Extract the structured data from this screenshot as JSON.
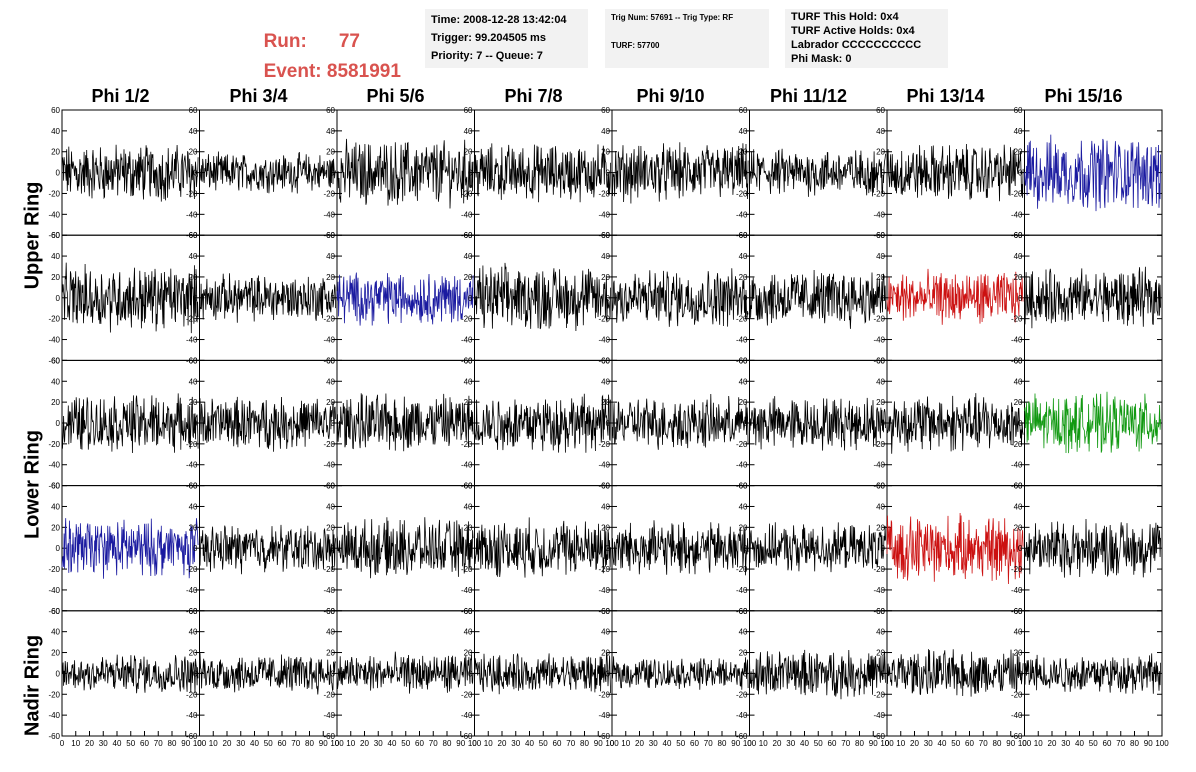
{
  "header": {
    "run_label": "Run:",
    "run_value": "77",
    "event_label": "Event:",
    "event_value": "8581991"
  },
  "info_boxes": {
    "time": "Time: 2008-12-28 13:42:04",
    "trigger": "Trigger: 99.204505 ms",
    "priority": "Priority: 7 -- Queue: 7",
    "trig_num": "Trig Num: 57691 -- Trig Type: RF",
    "turf": "TURF: 57700",
    "turf_this_hold": "TURF This Hold: 0x4",
    "turf_active_holds": "TURF Active Holds: 0x4",
    "labrador": "Labrador CCCCCCCCCC",
    "phi_mask": "Phi Mask: 0"
  },
  "columns": [
    "Phi 1/2",
    "Phi 3/4",
    "Phi 5/6",
    "Phi 7/8",
    "Phi 9/10",
    "Phi 11/12",
    "Phi 13/14",
    "Phi 15/16"
  ],
  "row_labels": {
    "upper": "Upper Ring",
    "lower": "Lower Ring",
    "nadir": "Nadir Ring"
  },
  "axis": {
    "y_ticks": [
      "60",
      "40",
      "20",
      "0",
      "-20",
      "-40",
      "-60"
    ],
    "x_ticks": [
      "0",
      "10",
      "20",
      "30",
      "40",
      "50",
      "60",
      "70",
      "80",
      "90",
      "100"
    ]
  },
  "colors": {
    "title": "#d9534f",
    "trace_default": "#000000",
    "trace_blue": "#1a1aa0",
    "trace_red": "#cc1111",
    "trace_green": "#119911",
    "info_bg": "#f2f2f2"
  },
  "chart_data": {
    "type": "line",
    "ylim": [
      -60,
      60
    ],
    "xlim": [
      0,
      100
    ],
    "panel_amplitude": [
      [
        22,
        15,
        25,
        22,
        22,
        18,
        22,
        28
      ],
      [
        25,
        18,
        20,
        25,
        22,
        22,
        20,
        22
      ],
      [
        22,
        20,
        22,
        22,
        20,
        20,
        22,
        22
      ],
      [
        22,
        18,
        22,
        22,
        20,
        18,
        25,
        22
      ],
      [
        15,
        15,
        15,
        15,
        12,
        18,
        18,
        15
      ]
    ],
    "trace_colors": [
      [
        "default",
        "default",
        "default",
        "default",
        "default",
        "default",
        "default",
        "blue"
      ],
      [
        "default",
        "default",
        "blue",
        "default",
        "default",
        "default",
        "red",
        "default"
      ],
      [
        "default",
        "default",
        "default",
        "default",
        "default",
        "default",
        "default",
        "green"
      ],
      [
        "blue",
        "default",
        "default",
        "default",
        "default",
        "default",
        "red",
        "default"
      ],
      [
        "default",
        "default",
        "default",
        "default",
        "default",
        "default",
        "default",
        "default"
      ]
    ]
  }
}
